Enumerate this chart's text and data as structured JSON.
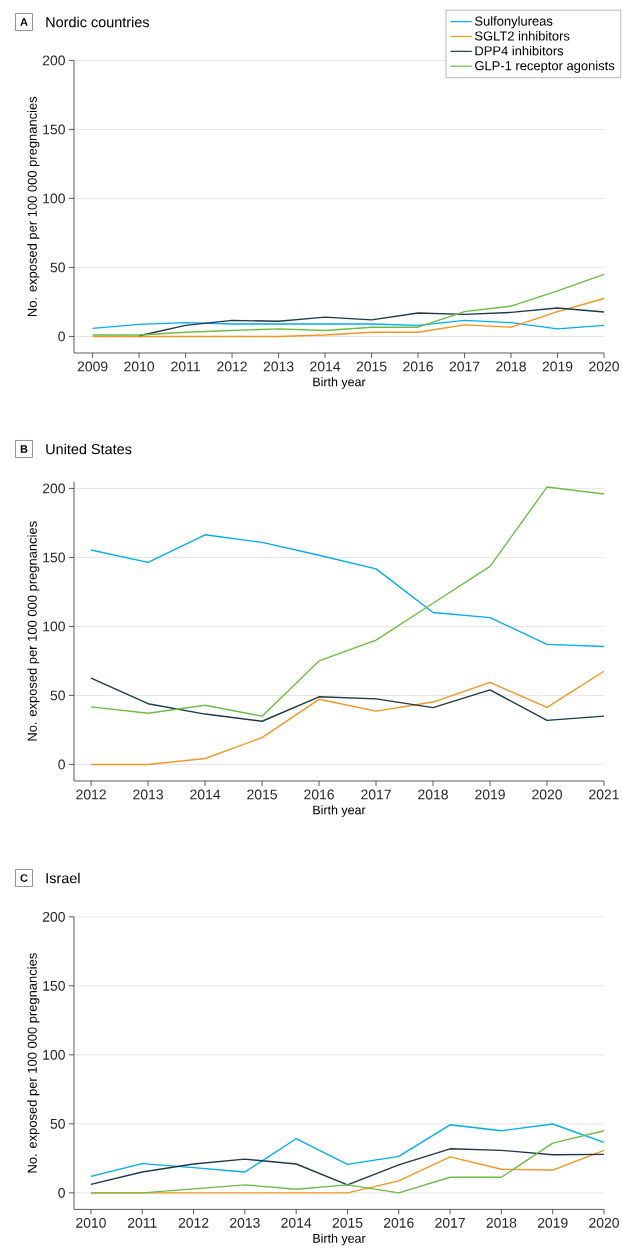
{
  "chart_data": [
    {
      "type": "line",
      "title": "Nordic countries",
      "annotations": [
        "A"
      ],
      "xlabel": "Birth year",
      "ylabel": "No. exposed per 100 000 pregnancies",
      "x": [
        2009,
        2010,
        2011,
        2012,
        2013,
        2014,
        2015,
        2016,
        2017,
        2018,
        2019,
        2020
      ],
      "xlim": [
        2008.6,
        2020
      ],
      "xticks": [
        2009,
        2010,
        2011,
        2012,
        2013,
        2014,
        2015,
        2016,
        2017,
        2018,
        2019,
        2020
      ],
      "ylim": [
        -12,
        200
      ],
      "yticks": [
        0,
        50,
        100,
        150,
        200
      ],
      "grid": "y",
      "legend": "top right",
      "line_style": "solid",
      "marker": "none",
      "series": [
        {
          "name": "Sulfonylureas",
          "color": "#00aeef",
          "values": [
            5.8,
            8.7,
            10,
            9,
            9,
            9,
            9,
            8,
            11.6,
            10,
            5.5,
            8
          ]
        },
        {
          "name": "SGLT2 inhibitors",
          "color": "#f7941d",
          "values": [
            0,
            0,
            0,
            0,
            0,
            1,
            3,
            3,
            8.4,
            6.7,
            18,
            27.5
          ]
        },
        {
          "name": "DPP4 inhibitors",
          "color": "#1e3a4a",
          "values": [
            null,
            0.5,
            8,
            11.6,
            11,
            14,
            12,
            17,
            16,
            17.4,
            20.6,
            17.7
          ]
        },
        {
          "name": "GLP-1 receptor agonists",
          "color": "#6abd45",
          "values": [
            1,
            1,
            3,
            4.3,
            5.5,
            4.3,
            6.7,
            6.7,
            18,
            22,
            33,
            45
          ]
        }
      ]
    },
    {
      "type": "line",
      "title": "United States",
      "annotations": [
        "B"
      ],
      "xlabel": "Birth year",
      "ylabel": "No. exposed per 100 000 pregnancies",
      "x": [
        2012,
        2013,
        2014,
        2015,
        2016,
        2017,
        2018,
        2019,
        2020,
        2021
      ],
      "xlim": [
        2011.7,
        2021
      ],
      "xticks": [
        2012,
        2013,
        2014,
        2015,
        2016,
        2017,
        2018,
        2019,
        2020,
        2021
      ],
      "ylim": [
        -12,
        205
      ],
      "yticks": [
        0,
        50,
        100,
        150,
        200
      ],
      "grid": "y",
      "line_style": "solid",
      "marker": "none",
      "series": [
        {
          "color": "#00aeef",
          "values": [
            155.4,
            146.4,
            166.4,
            160.9,
            151.6,
            141.7,
            110.1,
            106.4,
            87,
            85.5
          ]
        },
        {
          "color": "#f7941d",
          "values": [
            0,
            0,
            4.3,
            19.4,
            47.2,
            38.6,
            45.2,
            59.4,
            41.4,
            67.5
          ]
        },
        {
          "color": "#1e3a4a",
          "values": [
            62.6,
            44,
            36.5,
            31.3,
            49,
            47.5,
            41.2,
            54,
            31.9,
            35
          ]
        },
        {
          "color": "#6abd45",
          "values": [
            41.7,
            37.1,
            42.9,
            35,
            75,
            90.1,
            116.8,
            143.5,
            201,
            196
          ]
        }
      ]
    },
    {
      "type": "line",
      "title": "Israel",
      "annotations": [
        "C"
      ],
      "xlabel": "Birth year",
      "ylabel": "No. exposed per 100 000 pregnancies",
      "x": [
        2010,
        2011,
        2012,
        2013,
        2014,
        2015,
        2016,
        2017,
        2018,
        2019,
        2020
      ],
      "xlim": [
        2009.67,
        2020
      ],
      "xticks": [
        2010,
        2011,
        2012,
        2013,
        2014,
        2015,
        2016,
        2017,
        2018,
        2019,
        2020
      ],
      "ylim": [
        -12,
        200
      ],
      "yticks": [
        0,
        50,
        100,
        150,
        200
      ],
      "grid": "y",
      "line_style": "solid",
      "marker": "none",
      "series": [
        {
          "color": "#00aeef",
          "values": [
            11.9,
            21.2,
            18.3,
            15.1,
            39.2,
            20.6,
            26.4,
            49.3,
            45,
            49.9,
            36.6
          ]
        },
        {
          "color": "#f7941d",
          "values": [
            0,
            0,
            0,
            0,
            0,
            0,
            8.7,
            26.1,
            17.1,
            16.5,
            30.8
          ]
        },
        {
          "color": "#1e3a4a",
          "values": [
            6.1,
            15.1,
            20.9,
            24.4,
            20.9,
            5.8,
            20.3,
            31.9,
            30.8,
            27.6,
            27.9
          ]
        },
        {
          "color": "#6abd45",
          "values": [
            0,
            0,
            2.9,
            5.8,
            2.6,
            5.8,
            0,
            11.3,
            11.3,
            36,
            45
          ]
        }
      ]
    }
  ]
}
